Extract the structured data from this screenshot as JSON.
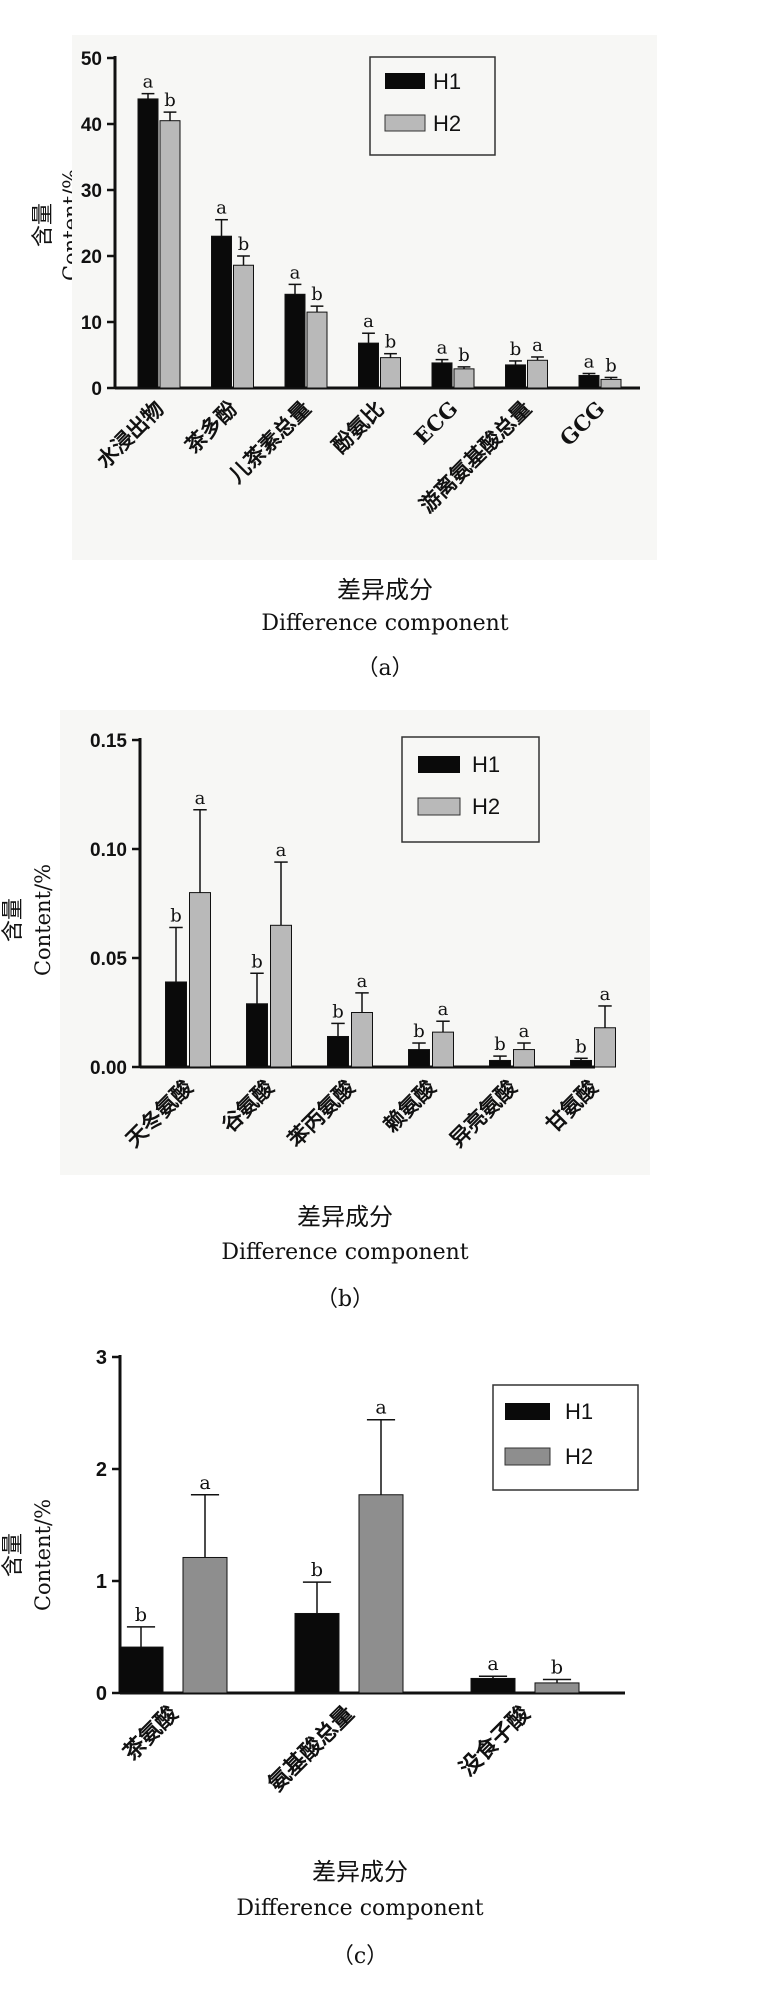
{
  "legend_labels": [
    "H1",
    "H2"
  ],
  "colors": {
    "H1": "#0a0a0a",
    "H2a": "#b9b9b9",
    "H2b": "#b9b9b9",
    "H2c": "#8e8e8e"
  },
  "xlabel_cn": "差异成分",
  "xlabel_en": "Difference component",
  "ylabel_cn": "含量",
  "ylabel_en": "Content/%",
  "chart_data": [
    {
      "type": "bar",
      "panel_label": "（a）",
      "ylim": [
        0,
        50
      ],
      "yticks": [
        "0",
        "10",
        "20",
        "30",
        "40",
        "50"
      ],
      "categories": [
        "水浸出物",
        "茶多酚",
        "儿茶素总量",
        "酚氨比",
        "ECG",
        "游离氨基酸总量",
        "GCG"
      ],
      "series": [
        {
          "name": "H1",
          "values": [
            43.8,
            23.0,
            14.2,
            6.8,
            3.8,
            3.5,
            1.9
          ],
          "errors": [
            0.8,
            2.5,
            1.5,
            1.5,
            0.5,
            0.6,
            0.3
          ],
          "letters": [
            "a",
            "a",
            "a",
            "a",
            "a",
            "b",
            "a"
          ]
        },
        {
          "name": "H2",
          "values": [
            40.5,
            18.6,
            11.5,
            4.6,
            2.9,
            4.2,
            1.3
          ],
          "errors": [
            1.3,
            1.4,
            0.9,
            0.6,
            0.3,
            0.5,
            0.3
          ],
          "letters": [
            "b",
            "b",
            "b",
            "b",
            "b",
            "a",
            "b"
          ]
        }
      ]
    },
    {
      "type": "bar",
      "panel_label": "（b）",
      "ylim": [
        0,
        0.15
      ],
      "yticks": [
        "0.00",
        "0.05",
        "0.10",
        "0.15"
      ],
      "categories": [
        "天冬氨酸",
        "谷氨酸",
        "苯丙氨酸",
        "赖氨酸",
        "异亮氨酸",
        "甘氨酸"
      ],
      "series": [
        {
          "name": "H1",
          "values": [
            0.039,
            0.029,
            0.014,
            0.008,
            0.003,
            0.003
          ],
          "errors": [
            0.025,
            0.014,
            0.006,
            0.003,
            0.002,
            0.001
          ],
          "letters": [
            "b",
            "b",
            "b",
            "b",
            "b",
            "b"
          ]
        },
        {
          "name": "H2",
          "values": [
            0.08,
            0.065,
            0.025,
            0.016,
            0.008,
            0.018
          ],
          "errors": [
            0.038,
            0.029,
            0.009,
            0.005,
            0.003,
            0.01
          ],
          "letters": [
            "a",
            "a",
            "a",
            "a",
            "a",
            "a"
          ]
        }
      ]
    },
    {
      "type": "bar",
      "panel_label": "（c）",
      "ylim": [
        0,
        3
      ],
      "yticks": [
        "0",
        "1",
        "2",
        "3"
      ],
      "categories": [
        "茶氨酸",
        "氨基酸总量",
        "没食子酸"
      ],
      "series": [
        {
          "name": "H1",
          "values": [
            0.41,
            0.71,
            0.13
          ],
          "errors": [
            0.18,
            0.28,
            0.02
          ],
          "letters": [
            "b",
            "b",
            "a"
          ]
        },
        {
          "name": "H2",
          "values": [
            1.21,
            1.77,
            0.09
          ],
          "errors": [
            0.56,
            0.67,
            0.03
          ],
          "letters": [
            "a",
            "a",
            "b"
          ]
        }
      ]
    }
  ]
}
